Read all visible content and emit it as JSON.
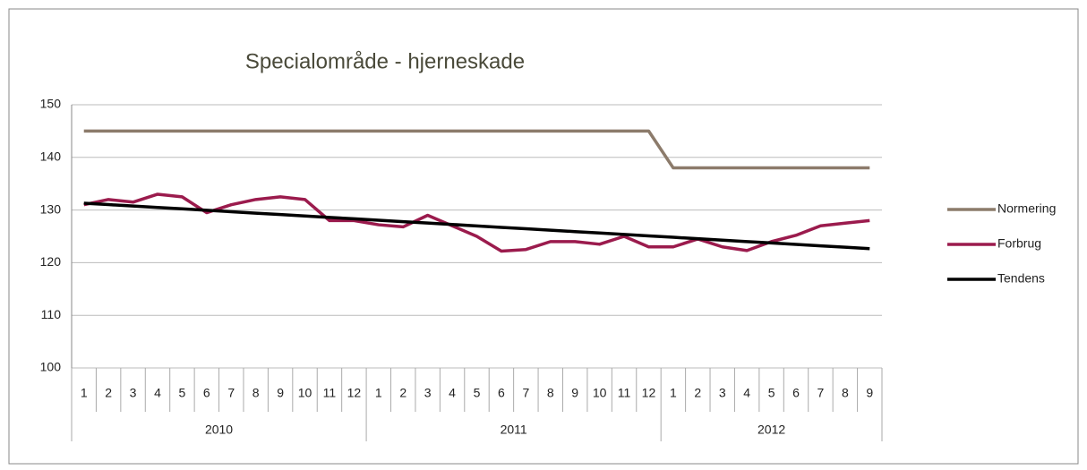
{
  "chart_data": {
    "type": "line",
    "title": "Specialområde - hjerneskade",
    "category_groups": [
      {
        "label": "2010",
        "categories": [
          "1",
          "2",
          "3",
          "4",
          "5",
          "6",
          "7",
          "8",
          "9",
          "10",
          "11",
          "12"
        ]
      },
      {
        "label": "2011",
        "categories": [
          "1",
          "2",
          "3",
          "4",
          "5",
          "6",
          "7",
          "8",
          "9",
          "10",
          "11",
          "12"
        ]
      },
      {
        "label": "2012",
        "categories": [
          "1",
          "2",
          "3",
          "4",
          "5",
          "6",
          "7",
          "8",
          "9"
        ]
      }
    ],
    "series": [
      {
        "name": "Normering",
        "color": "#8c7b6b",
        "values": [
          145,
          145,
          145,
          145,
          145,
          145,
          145,
          145,
          145,
          145,
          145,
          145,
          145,
          145,
          145,
          145,
          145,
          145,
          145,
          145,
          145,
          145,
          145,
          145,
          138,
          138,
          138,
          138,
          138,
          138,
          138,
          138,
          138
        ]
      },
      {
        "name": "Forbrug",
        "color": "#9b1b4d",
        "values": [
          131,
          132,
          131.5,
          133,
          132.5,
          129.5,
          131,
          132,
          132.5,
          132,
          128,
          128,
          127.2,
          126.8,
          129,
          127,
          125,
          122.2,
          122.5,
          124,
          124,
          123.5,
          125,
          123,
          123,
          124.5,
          123,
          122.3,
          124,
          125.2,
          127,
          127.5,
          128
        ]
      },
      {
        "name": "Tendens",
        "color": "#000000",
        "values": [
          131.3,
          131.03,
          130.76,
          130.49,
          130.22,
          129.95,
          129.68,
          129.41,
          129.14,
          128.87,
          128.6,
          128.33,
          128.06,
          127.79,
          127.52,
          127.25,
          126.98,
          126.71,
          126.44,
          126.17,
          125.9,
          125.63,
          125.36,
          125.09,
          124.82,
          124.55,
          124.28,
          124.01,
          123.74,
          123.47,
          123.2,
          122.93,
          122.66
        ]
      }
    ],
    "ylim": [
      100,
      150
    ],
    "yticks": [
      100,
      110,
      120,
      130,
      140,
      150
    ],
    "grid": true,
    "legend": "right"
  }
}
